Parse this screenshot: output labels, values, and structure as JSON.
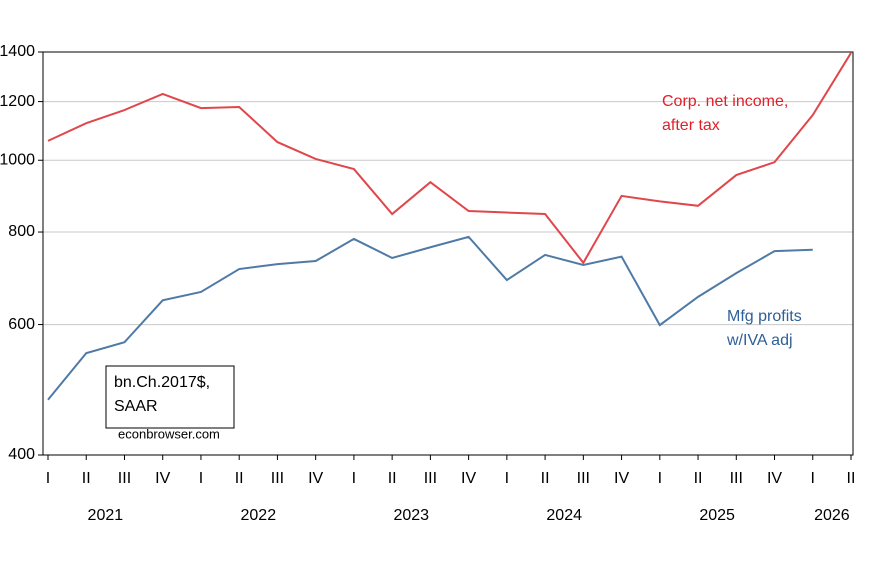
{
  "chart_data": {
    "type": "line",
    "categories": [
      "I",
      "II",
      "III",
      "IV",
      "I",
      "II",
      "III",
      "IV",
      "I",
      "II",
      "III",
      "IV",
      "I",
      "II",
      "III",
      "IV",
      "I",
      "II",
      "III",
      "IV",
      "I",
      "II"
    ],
    "years": [
      "2021",
      "2022",
      "2023",
      "2024",
      "2025",
      "2026"
    ],
    "series": [
      {
        "color": "#e0474c",
        "values": [
          1062,
          1122,
          1169,
          1229,
          1176,
          1180,
          1058,
          1004,
          973,
          846,
          934,
          854,
          850,
          846,
          727,
          895,
          880,
          868,
          955,
          994,
          1151,
          1396
        ]
      },
      {
        "color": "#4f7aa6",
        "values": [
          475,
          549,
          568,
          647,
          664,
          713,
          724,
          731,
          783,
          738,
          763,
          788,
          689,
          745,
          722,
          741,
          599,
          654,
          704,
          754,
          757,
          null
        ]
      }
    ],
    "ylim": [
      400,
      1400
    ],
    "yticks": [
      400,
      600,
      800,
      1000,
      1200,
      1400
    ],
    "log_scale": true,
    "grid": true,
    "annotations": [
      {
        "lines": [
          "Corp. net income,",
          "after tax"
        ],
        "color": "#e0202a"
      },
      {
        "lines": [
          "Mfg profits",
          "w/IVA adj"
        ],
        "color": "#2e5f96"
      },
      {
        "lines": [
          "bn.Ch.2017$,",
          "SAAR"
        ],
        "color": "#000000"
      },
      {
        "lines": [
          "econbrowser.com"
        ],
        "color": "#000000"
      }
    ]
  }
}
